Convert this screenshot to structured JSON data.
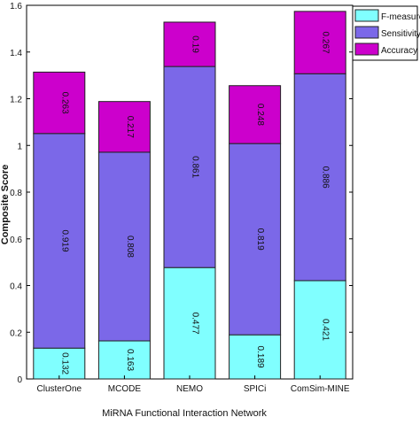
{
  "chart_data": {
    "type": "bar",
    "stacked": true,
    "title": "",
    "xlabel": "MiRNA Functional Interaction Network",
    "ylabel": "Composite Score",
    "ylim": [
      0,
      1.6
    ],
    "yticks": [
      "0",
      "0.2",
      "0.4",
      "0.6",
      "0.8",
      "1",
      "1.2",
      "1.4",
      "1.6"
    ],
    "categories": [
      "ClusterOne",
      "MCODE",
      "NEMO",
      "SPICi",
      "ComSim-MINE"
    ],
    "series": [
      {
        "name": "F-measure",
        "color": "#80ffff",
        "values": [
          0.132,
          0.163,
          0.477,
          0.189,
          0.421
        ],
        "labels": [
          "0.132",
          "0.163",
          "0.477",
          "0.189",
          "0.421"
        ]
      },
      {
        "name": "Sensitivity",
        "color": "#7b68e8",
        "values": [
          0.919,
          0.808,
          0.861,
          0.819,
          0.886
        ],
        "labels": [
          "0.919",
          "0.808",
          "0.861",
          "0.819",
          "0.886"
        ]
      },
      {
        "name": "Accuracy",
        "color": "#cc00cc",
        "values": [
          0.263,
          0.217,
          0.19,
          0.248,
          0.267
        ],
        "labels": [
          "0.263",
          "0.217",
          "0.19",
          "0.248",
          "0.267"
        ]
      }
    ],
    "grid": false,
    "legend_position": "top-right",
    "data_label_rotation": "vertical"
  }
}
